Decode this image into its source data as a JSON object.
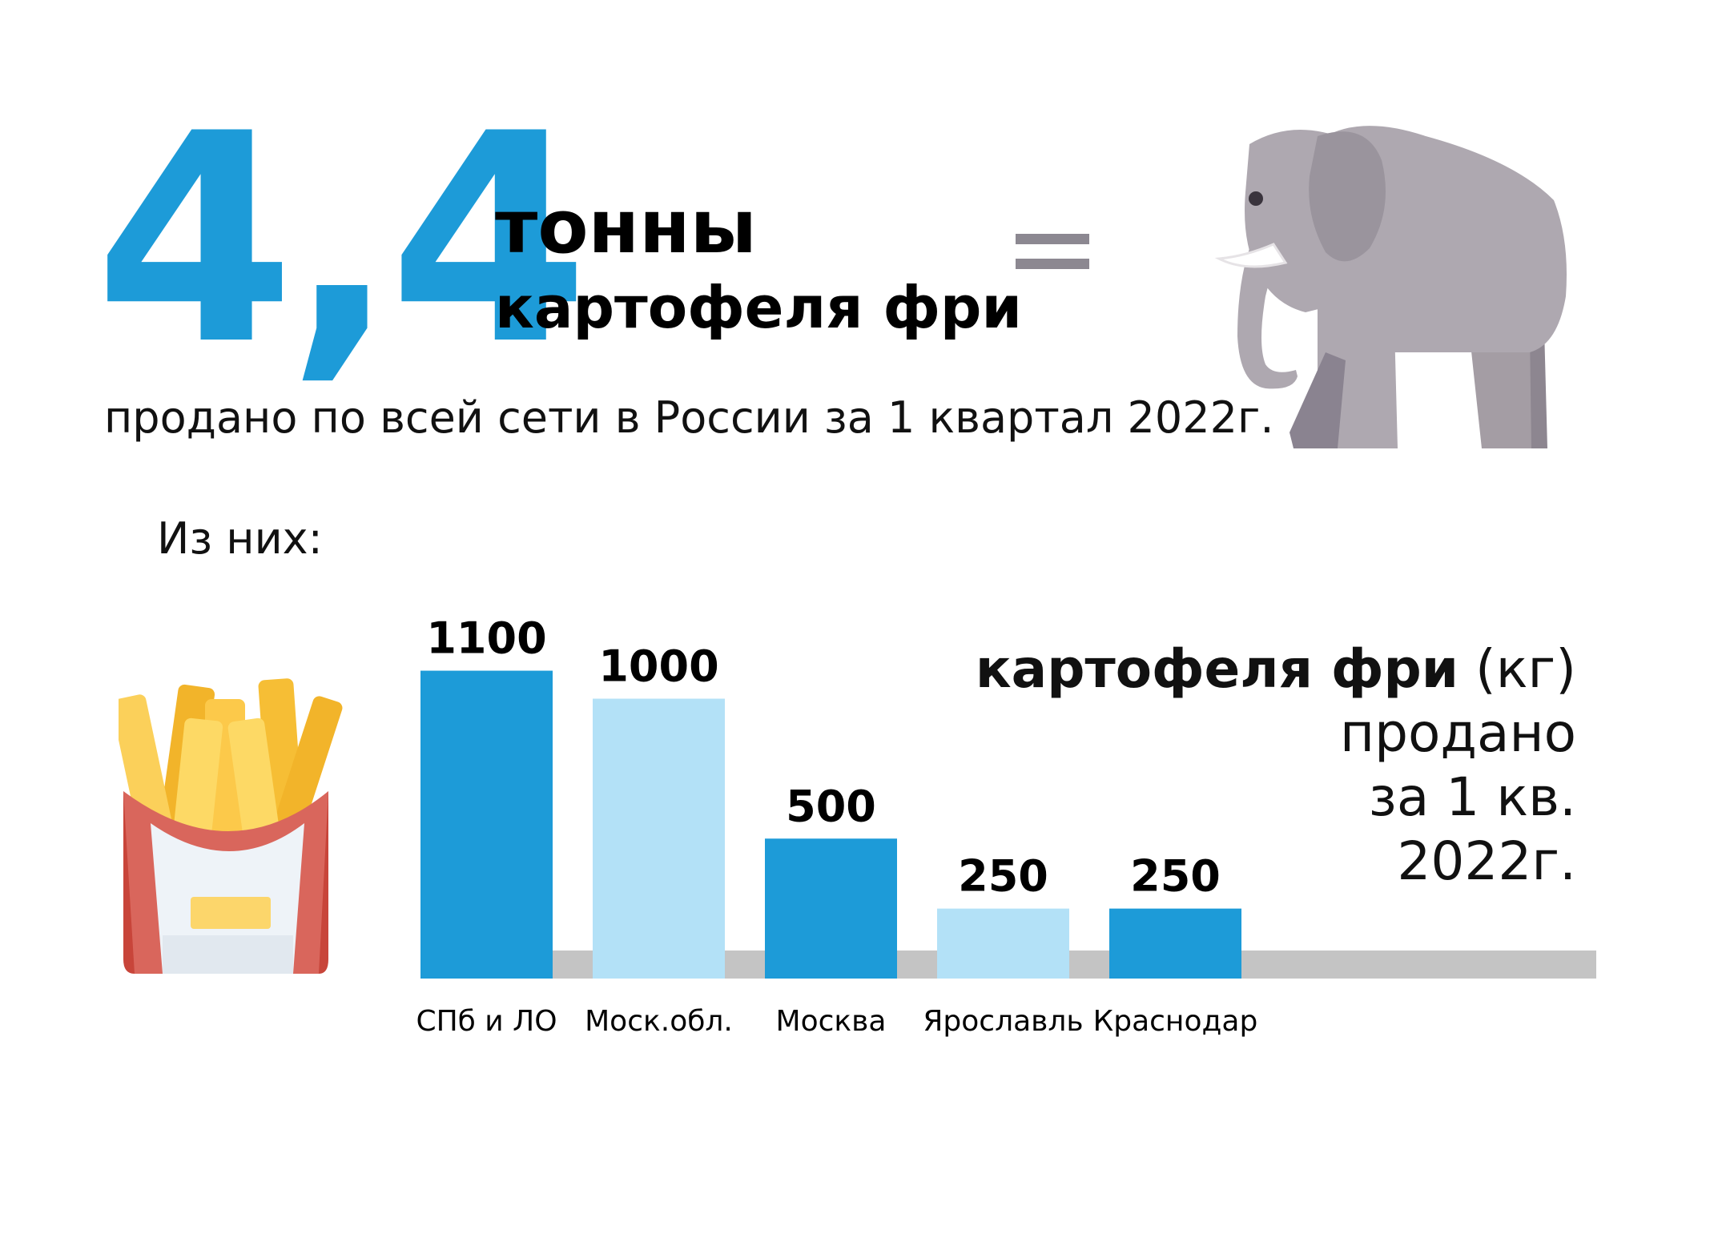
{
  "headline": {
    "number": "4,4",
    "unit": "тонны",
    "product": "картофеля фри",
    "equals": "=",
    "subtitle": "продано по всей сети в России за 1 квартал 2022г."
  },
  "of_them": "Из них:",
  "legend": {
    "bold": "картофеля фри",
    "unit": " (кг)",
    "line2": "продано",
    "line3": "за 1 кв.",
    "line4": "2022г."
  },
  "icons": {
    "left": "french-fries-icon",
    "right": "elephant-icon"
  },
  "colors": {
    "dark_blue": "#1d9bd8",
    "light_blue": "#b3e1f7",
    "baseline": "#c4c4c4"
  },
  "chart_data": {
    "type": "bar",
    "categories": [
      "СПб и ЛО",
      "Моск.обл.",
      "Москва",
      "Ярославль",
      "Краснодар"
    ],
    "values": [
      1100,
      1000,
      500,
      250,
      250
    ],
    "value_labels": [
      "1100",
      "1000",
      "500",
      "250",
      "250"
    ],
    "bar_colors": [
      "#1d9bd8",
      "#b3e1f7",
      "#1d9bd8",
      "#b3e1f7",
      "#1d9bd8"
    ],
    "ylabel": "картофеля фри (кг)",
    "grid": false
  }
}
